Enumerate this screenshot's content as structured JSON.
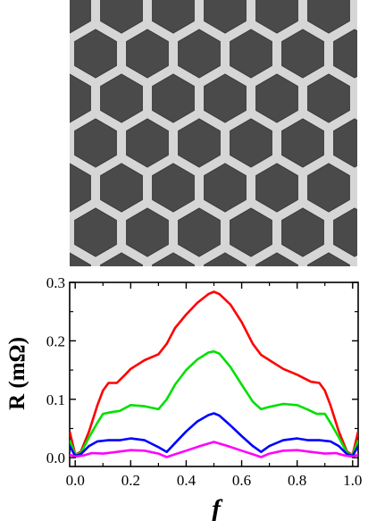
{
  "figure": {
    "micrograph": {
      "description_icon": "honeycomb-lattice-micrograph"
    }
  },
  "chart_data": {
    "type": "line",
    "title": "",
    "xlabel": "f",
    "ylabel": "R (mΩ)",
    "xlim": [
      -0.02,
      1.02
    ],
    "ylim": [
      -0.015,
      0.3
    ],
    "x_ticks": [
      0.0,
      0.2,
      0.4,
      0.6,
      0.8,
      1.0
    ],
    "x_tick_labels": [
      "0.0",
      "0.2",
      "0.4",
      "0.6",
      "0.8",
      "1.0"
    ],
    "y_ticks": [
      0.0,
      0.1,
      0.2,
      0.3
    ],
    "y_tick_labels": [
      "0.0",
      "0.1",
      "0.2",
      "0.3"
    ],
    "grid": false,
    "series": [
      {
        "color": "#ff0000",
        "x": [
          -0.02,
          0.0,
          0.02,
          0.05,
          0.08,
          0.1,
          0.12,
          0.15,
          0.18,
          0.2,
          0.25,
          0.3,
          0.33,
          0.36,
          0.4,
          0.44,
          0.48,
          0.5,
          0.52,
          0.56,
          0.6,
          0.64,
          0.67,
          0.7,
          0.75,
          0.8,
          0.85,
          0.88,
          0.9,
          0.92,
          0.95,
          0.98,
          1.0,
          1.02
        ],
        "y": [
          0.045,
          0.005,
          0.01,
          0.045,
          0.09,
          0.115,
          0.128,
          0.128,
          0.142,
          0.152,
          0.167,
          0.177,
          0.195,
          0.222,
          0.245,
          0.265,
          0.28,
          0.284,
          0.28,
          0.262,
          0.232,
          0.195,
          0.176,
          0.167,
          0.152,
          0.142,
          0.13,
          0.128,
          0.115,
          0.09,
          0.045,
          0.01,
          0.005,
          0.045
        ]
      },
      {
        "color": "#00e000",
        "x": [
          -0.02,
          0.0,
          0.02,
          0.05,
          0.08,
          0.1,
          0.13,
          0.16,
          0.2,
          0.25,
          0.3,
          0.33,
          0.36,
          0.4,
          0.44,
          0.48,
          0.5,
          0.52,
          0.56,
          0.6,
          0.64,
          0.67,
          0.7,
          0.75,
          0.8,
          0.84,
          0.87,
          0.9,
          0.92,
          0.95,
          0.98,
          1.0,
          1.02
        ],
        "y": [
          0.03,
          0.005,
          0.008,
          0.035,
          0.06,
          0.075,
          0.078,
          0.08,
          0.09,
          0.088,
          0.083,
          0.1,
          0.125,
          0.15,
          0.168,
          0.18,
          0.182,
          0.178,
          0.155,
          0.125,
          0.096,
          0.083,
          0.087,
          0.092,
          0.09,
          0.082,
          0.075,
          0.075,
          0.06,
          0.035,
          0.008,
          0.005,
          0.03
        ]
      },
      {
        "color": "#0000ff",
        "x": [
          -0.02,
          0.0,
          0.02,
          0.05,
          0.08,
          0.12,
          0.16,
          0.2,
          0.25,
          0.3,
          0.33,
          0.36,
          0.4,
          0.44,
          0.48,
          0.5,
          0.52,
          0.56,
          0.6,
          0.64,
          0.67,
          0.7,
          0.75,
          0.8,
          0.84,
          0.88,
          0.92,
          0.95,
          0.98,
          1.0,
          1.02
        ],
        "y": [
          0.02,
          0.003,
          0.006,
          0.02,
          0.028,
          0.03,
          0.03,
          0.033,
          0.03,
          0.018,
          0.01,
          0.025,
          0.045,
          0.062,
          0.073,
          0.076,
          0.072,
          0.055,
          0.037,
          0.02,
          0.01,
          0.02,
          0.03,
          0.033,
          0.03,
          0.03,
          0.028,
          0.02,
          0.006,
          0.003,
          0.02
        ]
      },
      {
        "color": "#ff00ff",
        "x": [
          -0.02,
          0.0,
          0.03,
          0.06,
          0.1,
          0.15,
          0.2,
          0.25,
          0.3,
          0.33,
          0.36,
          0.4,
          0.45,
          0.5,
          0.55,
          0.6,
          0.64,
          0.67,
          0.7,
          0.75,
          0.8,
          0.85,
          0.9,
          0.94,
          0.97,
          1.0,
          1.02
        ],
        "y": [
          0.005,
          0.002,
          0.004,
          0.008,
          0.007,
          0.01,
          0.013,
          0.012,
          0.007,
          0.001,
          0.006,
          0.012,
          0.02,
          0.027,
          0.02,
          0.012,
          0.006,
          0.001,
          0.007,
          0.012,
          0.013,
          0.01,
          0.007,
          0.008,
          0.004,
          0.002,
          0.005
        ]
      }
    ]
  }
}
